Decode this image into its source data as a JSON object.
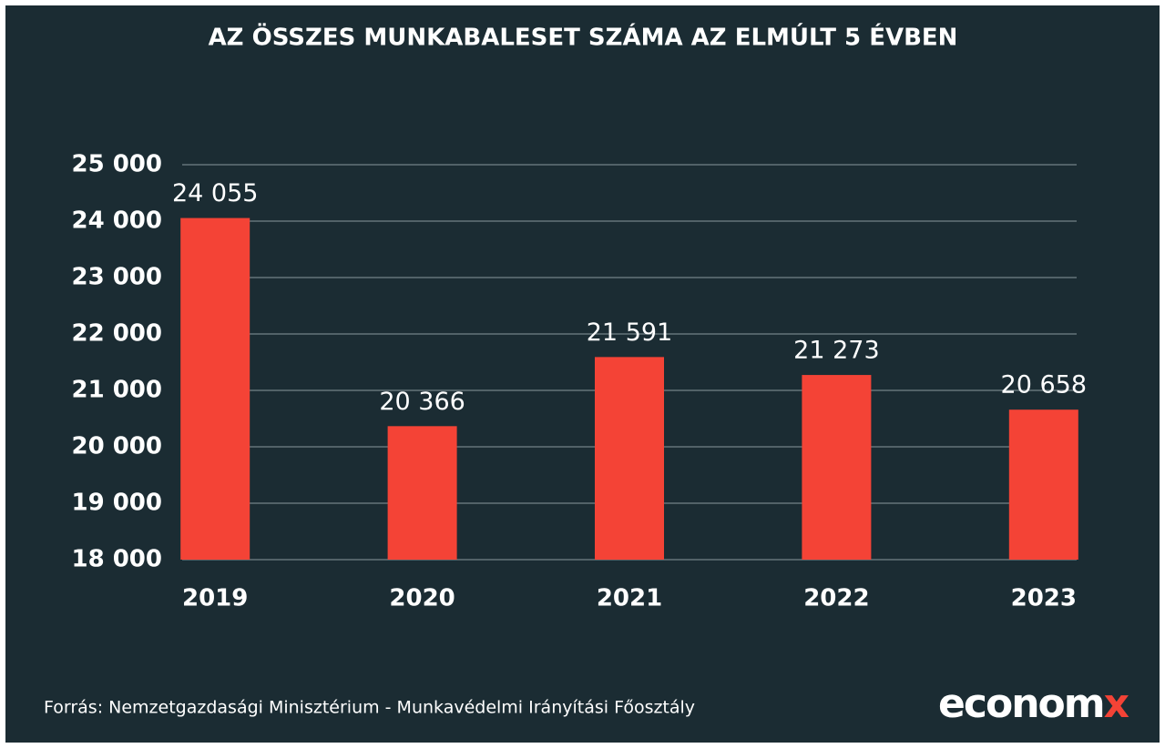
{
  "chart_data": {
    "type": "bar",
    "title": "AZ ÖSSZES MUNKABALESET SZÁMA AZ ELMÚLT 5 ÉVBEN",
    "categories": [
      "2019",
      "2020",
      "2021",
      "2022",
      "2023"
    ],
    "values": [
      24055,
      20366,
      21591,
      21273,
      20658
    ],
    "value_labels": [
      "24 055",
      "20 366",
      "21 591",
      "21 273",
      "20 658"
    ],
    "color": "#f44336",
    "ylim": [
      18000,
      25000
    ],
    "yticks": [
      {
        "value": 18000,
        "label": "18 000"
      },
      {
        "value": 19000,
        "label": "19 000"
      },
      {
        "value": 20000,
        "label": "20 000"
      },
      {
        "value": 21000,
        "label": "21 000"
      },
      {
        "value": 22000,
        "label": "22 000"
      },
      {
        "value": 23000,
        "label": "23 000"
      },
      {
        "value": 24000,
        "label": "24 000"
      },
      {
        "value": 25000,
        "label": "25 000"
      }
    ],
    "grid": true,
    "source": "Forrás: Nemzetgazdasági Minisztérium - Munkavédelmi Irányítási Főosztály",
    "logo": [
      "econom",
      "x"
    ]
  }
}
